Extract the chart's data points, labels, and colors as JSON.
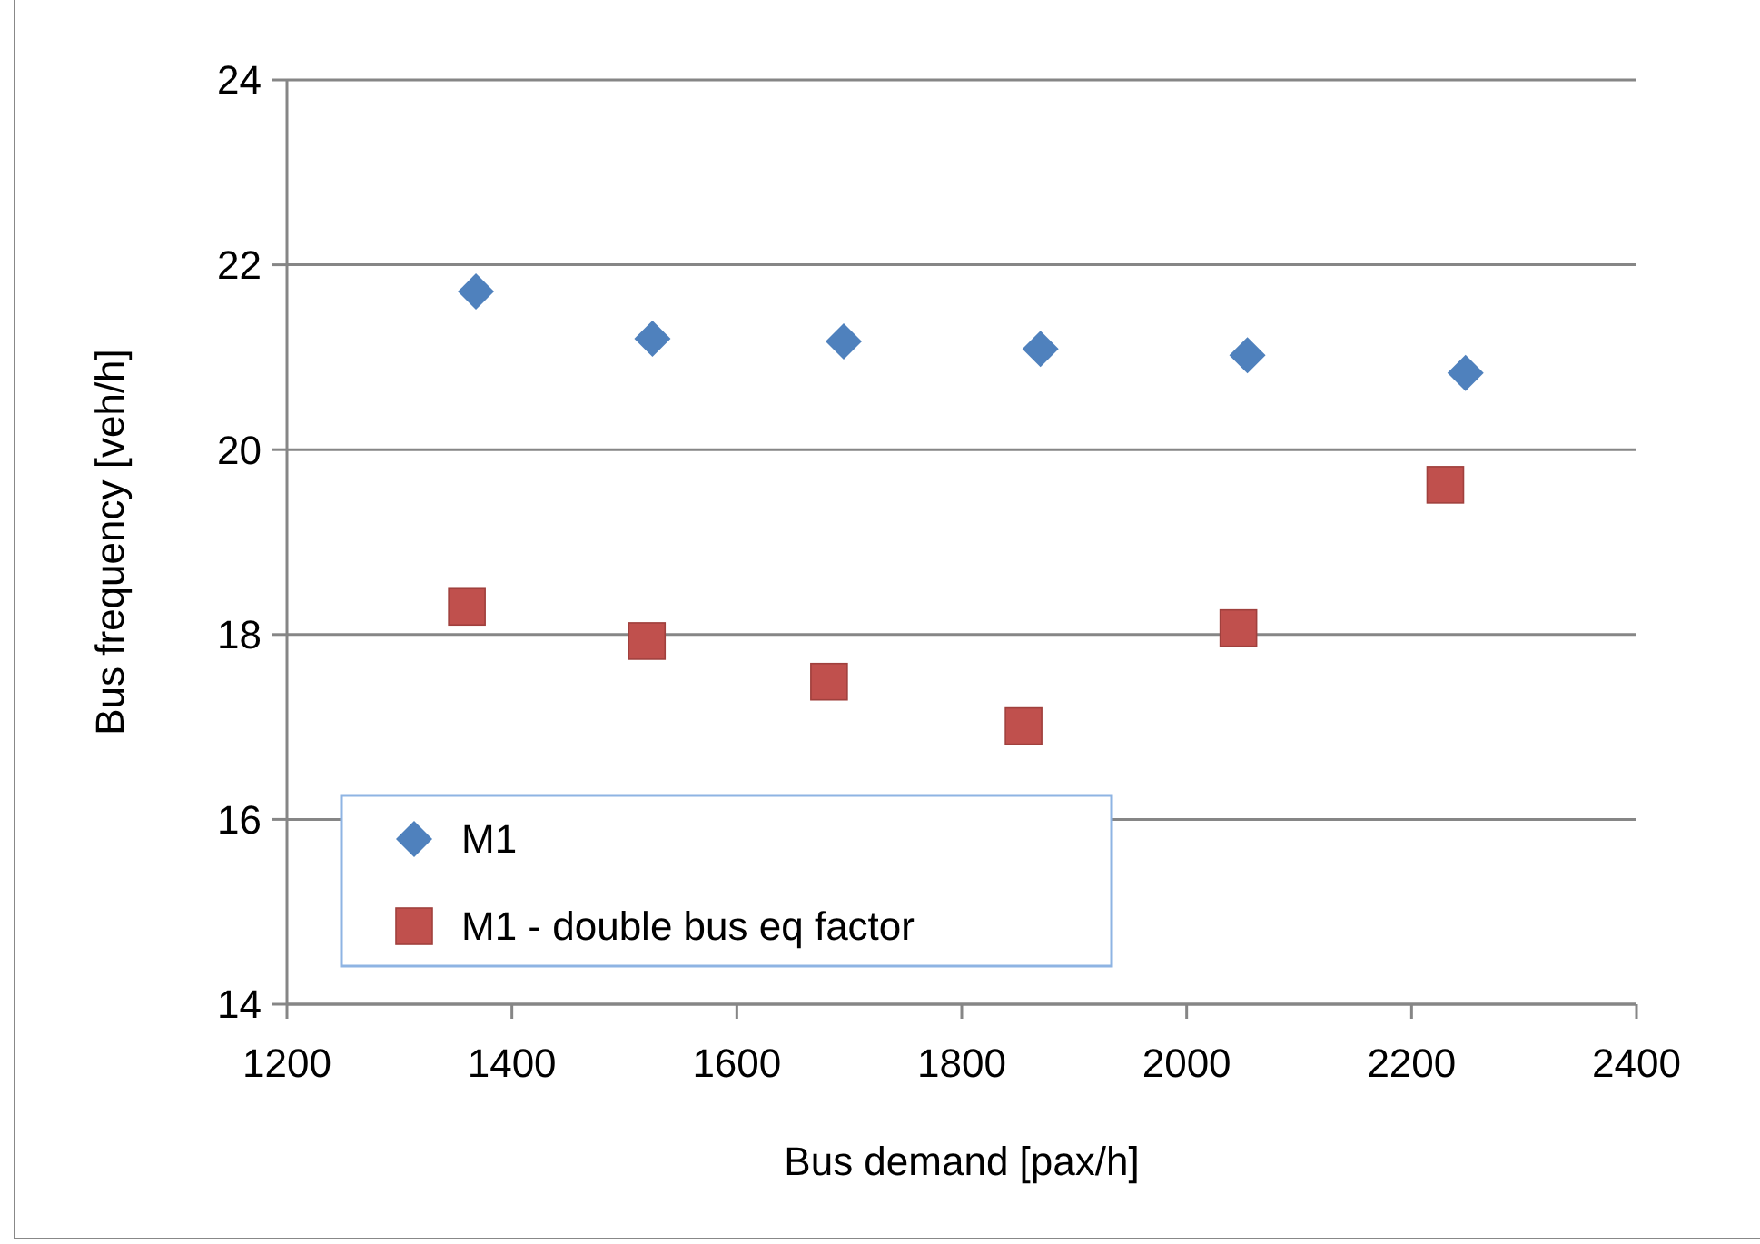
{
  "chart_data": {
    "type": "scatter",
    "xlabel": "Bus demand [pax/h]",
    "ylabel": "Bus frequency [veh/h]",
    "xlim": [
      1200,
      2400
    ],
    "xticks": [
      1200,
      1400,
      1600,
      1800,
      2000,
      2200,
      2400
    ],
    "ylim": [
      14,
      24
    ],
    "yticks": [
      14,
      16,
      18,
      20,
      22,
      24
    ],
    "grid": "y",
    "legend": "bottom left",
    "series": [
      {
        "name": "M1",
        "color": "#4f81bd",
        "marker": "diamond",
        "x": [
          1368,
          1525,
          1695,
          1870,
          2054,
          2248
        ],
        "values": [
          21.71,
          21.2,
          21.17,
          21.09,
          21.02,
          20.83
        ]
      },
      {
        "name": "M1 - double bus eq factor",
        "color": "#c0504d",
        "marker": "square",
        "x": [
          1360,
          1520,
          1682,
          1855,
          2046,
          2230
        ],
        "values": [
          18.3,
          17.93,
          17.49,
          17.01,
          18.07,
          19.62
        ]
      }
    ]
  }
}
